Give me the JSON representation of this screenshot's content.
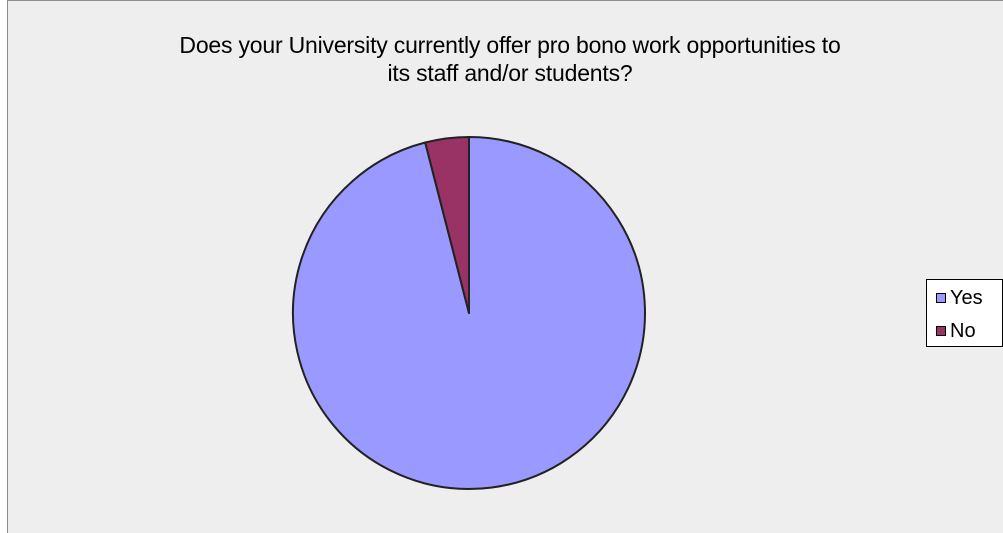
{
  "chart_data": {
    "type": "pie",
    "title": "Does your University currently offer pro bono work opportunities to its staff and/or students?",
    "title_lines": [
      "Does your University currently offer pro bono work opportunities to",
      "its staff and/or students?"
    ],
    "categories": [
      "Yes",
      "No"
    ],
    "values": [
      96,
      4
    ],
    "colors": [
      "#9999ff",
      "#993366"
    ],
    "legend_position": "right"
  },
  "colors": {
    "plot_background": "#eeeeee",
    "slice_outline": "#222222"
  }
}
